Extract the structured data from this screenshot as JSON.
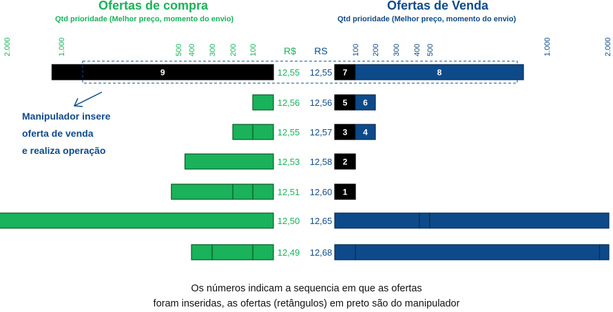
{
  "colors": {
    "buy": "#1ab25a",
    "sell": "#0e4a8a",
    "manipulator": "#000000",
    "text_dark": "#111111"
  },
  "buy_panel": {
    "title": "Ofertas de compra",
    "subtitle": "Qtd prioridade (Melhor preço, momento do envio)",
    "currency_header": "R$"
  },
  "sell_panel": {
    "title": "Ofertas de Venda",
    "subtitle": "Qtd prioridade (Melhor preço, momento do envio)",
    "currency_header": "RS"
  },
  "annotation": {
    "line1": "Manipulador insere",
    "line2": "oferta de venda",
    "line3": "e realiza operação"
  },
  "caption": {
    "line1": "Os números indicam a sequencia em que as ofertas",
    "line2": "foram inseridas, as ofertas (retângulos) em preto são do manipulador"
  },
  "chart_data": {
    "type": "bar",
    "description_type": "order-book depth (mirrored horizontal bars)",
    "axis_ticks": [
      100,
      200,
      300,
      400,
      500,
      1000,
      2000
    ],
    "axis_tick_labels": [
      "100",
      "200",
      "300",
      "400",
      "500",
      "1.000",
      "2.000"
    ],
    "scale": "non-linear (compressed above 500)",
    "xlim": [
      0,
      2000
    ],
    "highlighted_row": 0,
    "rows": [
      {
        "buy_price": "12,55",
        "buy_orders": [
          {
            "qty": 1150,
            "label": "9",
            "manipulator": true
          }
        ],
        "sell_price": "12,55",
        "sell_orders": [
          {
            "qty": 100,
            "label": "7",
            "manipulator": true
          },
          {
            "qty": 800,
            "label": "8",
            "manipulator": false
          }
        ]
      },
      {
        "buy_price": "12,56",
        "buy_orders": [
          {
            "qty": 100,
            "label": "",
            "manipulator": false
          }
        ],
        "sell_price": "12,56",
        "sell_orders": [
          {
            "qty": 100,
            "label": "5",
            "manipulator": true
          },
          {
            "qty": 100,
            "label": "6",
            "manipulator": false
          }
        ]
      },
      {
        "buy_price": "12,55",
        "buy_orders": [
          {
            "qty": 100,
            "label": "",
            "manipulator": false
          },
          {
            "qty": 100,
            "label": "",
            "manipulator": false
          }
        ],
        "sell_price": "12,57",
        "sell_orders": [
          {
            "qty": 100,
            "label": "3",
            "manipulator": true
          },
          {
            "qty": 100,
            "label": "4",
            "manipulator": false
          }
        ]
      },
      {
        "buy_price": "12,53",
        "buy_orders": [
          {
            "qty": 450,
            "label": "",
            "manipulator": false
          }
        ],
        "sell_price": "12,58",
        "sell_orders": [
          {
            "qty": 100,
            "label": "2",
            "manipulator": true
          }
        ]
      },
      {
        "buy_price": "12,51",
        "buy_orders": [
          {
            "qty": 100,
            "label": "",
            "manipulator": false
          },
          {
            "qty": 100,
            "label": "",
            "manipulator": false
          },
          {
            "qty": 330,
            "label": "",
            "manipulator": false
          }
        ],
        "sell_price": "12,60",
        "sell_orders": [
          {
            "qty": 100,
            "label": "1",
            "manipulator": true
          }
        ]
      },
      {
        "buy_price": "12,50",
        "buy_orders": [
          {
            "qty": 2000,
            "label": "",
            "manipulator": false
          }
        ],
        "sell_price": "12,65",
        "sell_orders": [
          {
            "qty": 420,
            "label": "",
            "manipulator": false
          },
          {
            "qty": 80,
            "label": "",
            "manipulator": false
          },
          {
            "qty": 1500,
            "label": "",
            "manipulator": false
          }
        ]
      },
      {
        "buy_price": "12,49",
        "buy_orders": [
          {
            "qty": 100,
            "label": "",
            "manipulator": false
          },
          {
            "qty": 200,
            "label": "",
            "manipulator": false
          },
          {
            "qty": 100,
            "label": "",
            "manipulator": false
          }
        ],
        "sell_price": "12,68",
        "sell_orders": [
          {
            "qty": 100,
            "label": "",
            "manipulator": false
          },
          {
            "qty": 1750,
            "label": "",
            "manipulator": false
          },
          {
            "qty": 150,
            "label": "",
            "manipulator": false
          }
        ]
      }
    ]
  }
}
